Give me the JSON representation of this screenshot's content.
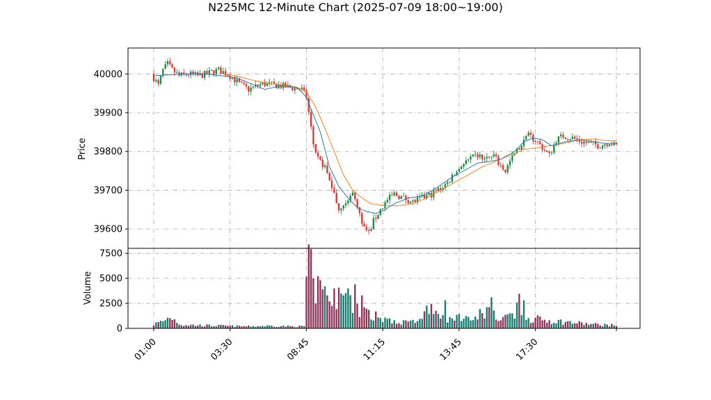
{
  "chart_data": {
    "type": "candlestick",
    "title": "N225MC 12-Minute Chart (2025-07-09 18:00~19:00)",
    "price_panel": {
      "ylabel": "Price",
      "ylim": [
        39550,
        40067
      ],
      "yticks": [
        39600,
        39700,
        39800,
        39900,
        40000
      ],
      "ytick_labels": [
        "39600",
        "39700",
        "39800",
        "39900",
        "40000"
      ],
      "grid": true
    },
    "volume_panel": {
      "ylabel": "Volume",
      "ylim": [
        0,
        8000
      ],
      "yticks": [
        0,
        2500,
        5000,
        7500
      ],
      "ytick_labels": [
        "0",
        "2500",
        "5000",
        "7500"
      ],
      "grid": true
    },
    "x": {
      "range": [
        0,
        200
      ],
      "ticks": [
        0,
        33,
        66,
        99,
        132,
        165,
        200
      ],
      "tick_labels": [
        "01:00",
        "03:30",
        "08:45",
        "11:15",
        "13:45",
        "17:30",
        ""
      ]
    },
    "colors": {
      "up": "#1a8a3a",
      "down": "#e0322b",
      "vol_up": "#127a6c",
      "vol_down": "#8e2f55",
      "ma_short": "#1f77b4",
      "ma_long": "#ff7f0e"
    },
    "price_anchors": [
      [
        0,
        40000
      ],
      [
        3,
        39970
      ],
      [
        5,
        40010
      ],
      [
        7,
        40025
      ],
      [
        9,
        40010
      ],
      [
        12,
        39995
      ],
      [
        16,
        40000
      ],
      [
        20,
        39995
      ],
      [
        24,
        40000
      ],
      [
        26,
        40005
      ],
      [
        29,
        40010
      ],
      [
        33,
        40000
      ],
      [
        38,
        39975
      ],
      [
        42,
        39960
      ],
      [
        48,
        39975
      ],
      [
        55,
        39970
      ],
      [
        60,
        39965
      ],
      [
        65,
        39960
      ],
      [
        67,
        39940
      ],
      [
        68,
        39900
      ],
      [
        70,
        39820
      ],
      [
        72,
        39780
      ],
      [
        75,
        39760
      ],
      [
        78,
        39710
      ],
      [
        81,
        39650
      ],
      [
        84,
        39675
      ],
      [
        87,
        39690
      ],
      [
        89,
        39660
      ],
      [
        91,
        39610
      ],
      [
        94,
        39590
      ],
      [
        96,
        39620
      ],
      [
        99,
        39650
      ],
      [
        102,
        39675
      ],
      [
        105,
        39690
      ],
      [
        109,
        39680
      ],
      [
        113,
        39670
      ],
      [
        117,
        39680
      ],
      [
        121,
        39690
      ],
      [
        125,
        39705
      ],
      [
        128,
        39720
      ],
      [
        131,
        39740
      ],
      [
        134,
        39765
      ],
      [
        138,
        39780
      ],
      [
        141,
        39790
      ],
      [
        144,
        39780
      ],
      [
        148,
        39790
      ],
      [
        150,
        39770
      ],
      [
        153,
        39750
      ],
      [
        156,
        39785
      ],
      [
        159,
        39810
      ],
      [
        163,
        39840
      ],
      [
        166,
        39830
      ],
      [
        169,
        39810
      ],
      [
        172,
        39790
      ],
      [
        175,
        39830
      ],
      [
        178,
        39840
      ],
      [
        182,
        39835
      ],
      [
        186,
        39825
      ],
      [
        190,
        39820
      ],
      [
        194,
        39815
      ],
      [
        198,
        39825
      ],
      [
        200,
        39815
      ]
    ],
    "volume_anchors": [
      [
        0,
        400
      ],
      [
        5,
        800
      ],
      [
        7,
        1200
      ],
      [
        12,
        350
      ],
      [
        20,
        300
      ],
      [
        30,
        250
      ],
      [
        40,
        200
      ],
      [
        50,
        250
      ],
      [
        60,
        200
      ],
      [
        65,
        200
      ],
      [
        66,
        5200
      ],
      [
        67,
        7500
      ],
      [
        68,
        5500
      ],
      [
        69,
        3500
      ],
      [
        72,
        3800
      ],
      [
        76,
        2500
      ],
      [
        80,
        3000
      ],
      [
        85,
        2800
      ],
      [
        88,
        2200
      ],
      [
        90,
        1600
      ],
      [
        96,
        1200
      ],
      [
        100,
        900
      ],
      [
        110,
        600
      ],
      [
        116,
        800
      ],
      [
        118,
        1800
      ],
      [
        120,
        2200
      ],
      [
        126,
        700
      ],
      [
        130,
        1300
      ],
      [
        134,
        900
      ],
      [
        138,
        1000
      ],
      [
        142,
        1500
      ],
      [
        145,
        2000
      ],
      [
        148,
        1200
      ],
      [
        150,
        1300
      ],
      [
        156,
        1700
      ],
      [
        158,
        2800
      ],
      [
        162,
        1000
      ],
      [
        170,
        800
      ],
      [
        180,
        600
      ],
      [
        190,
        400
      ],
      [
        200,
        300
      ]
    ],
    "volume_spikes": [
      [
        70,
        2500
      ],
      [
        78,
        4000
      ],
      [
        82,
        3300
      ],
      [
        87,
        4400
      ],
      [
        90,
        3300
      ],
      [
        126,
        2800
      ],
      [
        146,
        3100
      ],
      [
        160,
        2800
      ]
    ],
    "ma_short_anchors": [
      [
        0,
        39995
      ],
      [
        12,
        40000
      ],
      [
        22,
        40000
      ],
      [
        30,
        39995
      ],
      [
        36,
        39990
      ],
      [
        42,
        39975
      ],
      [
        48,
        39960
      ],
      [
        55,
        39970
      ],
      [
        62,
        39965
      ],
      [
        66,
        39940
      ],
      [
        72,
        39850
      ],
      [
        76,
        39760
      ],
      [
        80,
        39710
      ],
      [
        84,
        39680
      ],
      [
        88,
        39655
      ],
      [
        92,
        39645
      ],
      [
        96,
        39640
      ],
      [
        100,
        39650
      ],
      [
        104,
        39665
      ],
      [
        110,
        39680
      ],
      [
        116,
        39685
      ],
      [
        122,
        39705
      ],
      [
        128,
        39730
      ],
      [
        134,
        39750
      ],
      [
        140,
        39770
      ],
      [
        146,
        39775
      ],
      [
        150,
        39780
      ],
      [
        156,
        39800
      ],
      [
        160,
        39825
      ],
      [
        164,
        39835
      ],
      [
        168,
        39830
      ],
      [
        172,
        39815
      ],
      [
        178,
        39825
      ],
      [
        184,
        39830
      ],
      [
        190,
        39825
      ],
      [
        196,
        39820
      ],
      [
        200,
        39822
      ]
    ],
    "ma_long_anchors": [
      [
        30,
        40000
      ],
      [
        36,
        39995
      ],
      [
        42,
        39985
      ],
      [
        50,
        39975
      ],
      [
        58,
        39970
      ],
      [
        62,
        39965
      ],
      [
        66,
        39955
      ],
      [
        70,
        39915
      ],
      [
        74,
        39860
      ],
      [
        78,
        39800
      ],
      [
        82,
        39740
      ],
      [
        86,
        39700
      ],
      [
        90,
        39680
      ],
      [
        94,
        39665
      ],
      [
        100,
        39660
      ],
      [
        106,
        39660
      ],
      [
        112,
        39665
      ],
      [
        118,
        39680
      ],
      [
        124,
        39700
      ],
      [
        130,
        39720
      ],
      [
        136,
        39740
      ],
      [
        142,
        39760
      ],
      [
        148,
        39775
      ],
      [
        154,
        39790
      ],
      [
        160,
        39805
      ],
      [
        166,
        39810
      ],
      [
        172,
        39815
      ],
      [
        178,
        39822
      ],
      [
        184,
        39830
      ],
      [
        190,
        39832
      ],
      [
        196,
        39828
      ],
      [
        200,
        39828
      ]
    ]
  }
}
